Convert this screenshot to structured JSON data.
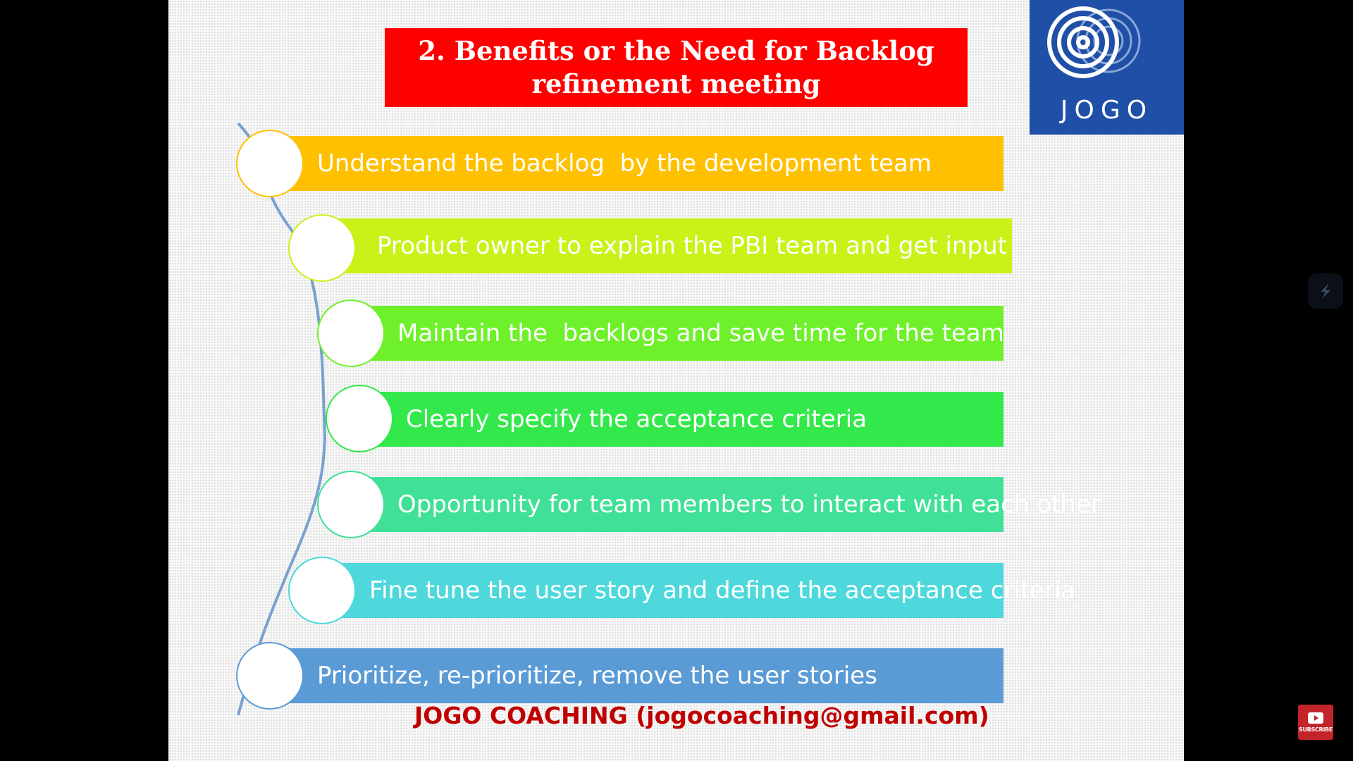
{
  "slide": {
    "title_line1": "2. Benefits or the Need for Backlog",
    "title_line2": "refinement meeting",
    "title_bg": "#ff0000",
    "logo": {
      "text": "JOGO",
      "bg": "#1f4fa6"
    },
    "items": [
      {
        "label": "Understand the backlog  by the development team",
        "color": "#ffc000",
        "border": "#ffc000"
      },
      {
        "label": "Product owner to explain the PBI team and get input",
        "color": "#c8f218",
        "border": "#c8f218"
      },
      {
        "label": "Maintain the  backlogs and save time for the team",
        "color": "#6ef02a",
        "border": "#6ef02a"
      },
      {
        "label": "Clearly specify the acceptance criteria",
        "color": "#33e84a",
        "border": "#33e84a"
      },
      {
        "label": "Opportunity for team members to interact with each other",
        "color": "#40e096",
        "border": "#40e096"
      },
      {
        "label": "Fine tune the user story and define the acceptance criteria",
        "color": "#4ed8dc",
        "border": "#4ed8dc"
      },
      {
        "label": "Prioritize, re-prioritize, remove the user stories",
        "color": "#5b9bd5",
        "border": "#5b9bd5"
      }
    ],
    "footer": "JOGO COACHING (jogocoaching@gmail.com)"
  },
  "player": {
    "subscribe_label": "SUBSCRIBE",
    "side_icon": "stream-logo-icon",
    "subscribe_icon": "youtube-play-icon"
  }
}
